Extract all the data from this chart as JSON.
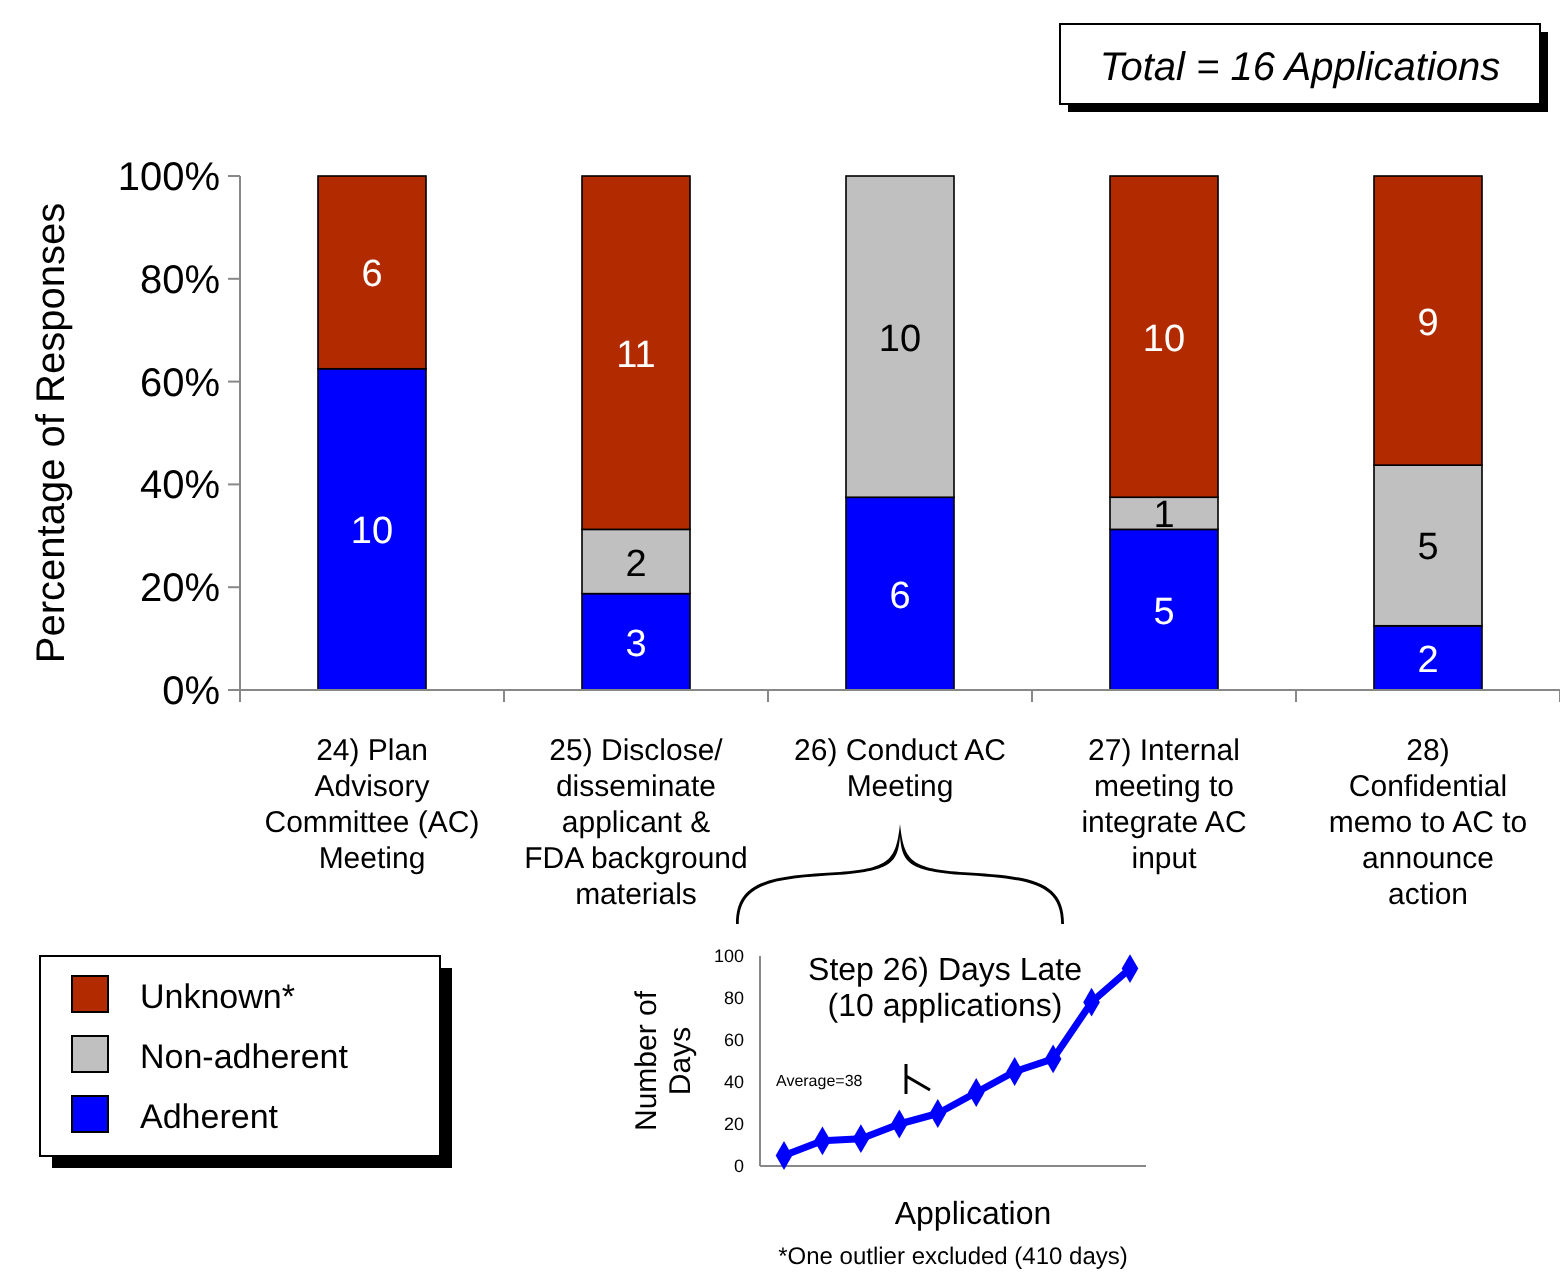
{
  "chart_data": [
    {
      "type": "bar",
      "stacked": true,
      "ylabel": "Percentage of Responses",
      "categories": [
        "24) Plan Advisory Committee (AC) Meeting",
        "25) Disclose/ disseminate applicant & FDA background materials",
        "26) Conduct AC Meeting",
        "27) Internal meeting to integrate AC input",
        "28) Confidential memo to AC to announce action"
      ],
      "series": [
        {
          "name": "Adherent",
          "color": "#0000ff",
          "values": [
            62.5,
            18.75,
            37.5,
            31.25,
            12.5
          ]
        },
        {
          "name": "Non-adherent",
          "color": "#c0c0c0",
          "values": [
            0,
            12.5,
            62.5,
            6.25,
            31.25
          ]
        },
        {
          "name": "Unknown*",
          "color": "#b22a00",
          "values": [
            37.5,
            68.75,
            0,
            62.5,
            56.25
          ]
        }
      ],
      "ylim": [
        0,
        100
      ],
      "yticks": [
        {
          "value": 0,
          "label": "0%"
        },
        {
          "value": 20,
          "label": "20%"
        },
        {
          "value": 40,
          "label": "40%"
        },
        {
          "value": 60,
          "label": "60%"
        },
        {
          "value": 80,
          "label": "80%"
        },
        {
          "value": 100,
          "label": "100%"
        }
      ],
      "legend": "bottom left",
      "grid": false,
      "annotations": [
        "Total = 16 Applications",
        "10",
        "6",
        "3",
        "2",
        "11",
        "6",
        "10",
        "5",
        "1",
        "10",
        "2",
        "5",
        "9"
      ]
    },
    {
      "type": "line",
      "title": "Step 26) Days Late (10 applications)",
      "xlabel": "Application",
      "ylabel": "Number of Days",
      "categories": [
        null,
        null,
        null,
        null,
        null,
        null,
        null,
        null,
        null,
        null
      ],
      "series": [
        {
          "color": "#0000ff",
          "values": [
            5,
            12,
            13,
            20,
            25,
            35,
            45,
            51,
            78,
            94
          ]
        }
      ],
      "ylim": [
        0,
        100
      ],
      "yticks": [
        0,
        20,
        40,
        60,
        80,
        100
      ],
      "marker": "diamond",
      "line_style": "solid",
      "grid": false,
      "annotations": [
        "Average=38",
        "*One outlier excluded (410 days)"
      ]
    }
  ]
}
